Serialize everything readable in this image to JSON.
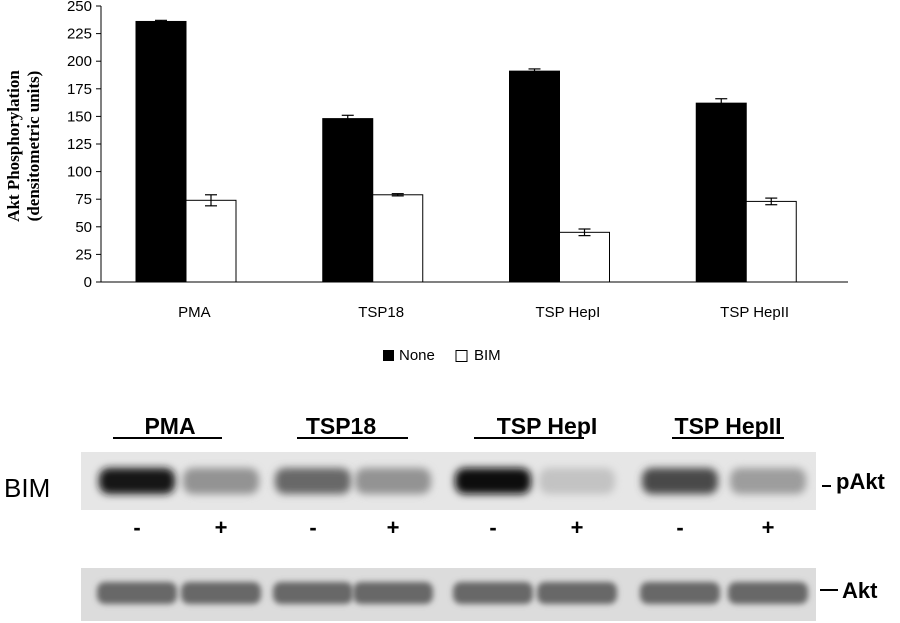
{
  "chart_data": {
    "type": "bar",
    "ylabel_line1": "Akt Phosphorylation",
    "ylabel_line2": "(densitometric units)",
    "ylim": [
      0,
      250
    ],
    "yticks": [
      0,
      25,
      50,
      75,
      100,
      125,
      150,
      175,
      200,
      225,
      250
    ],
    "categories": [
      "PMA",
      "TSP18",
      "TSP HepI",
      "TSP HepII"
    ],
    "series": [
      {
        "name": "None",
        "values": [
          236,
          148,
          191,
          162
        ],
        "errors": [
          1,
          3,
          2,
          4
        ],
        "color": "#000000"
      },
      {
        "name": "BIM",
        "values": [
          74,
          79,
          45,
          73
        ],
        "errors": [
          5,
          1,
          3,
          3
        ],
        "color": "#ffffff"
      }
    ],
    "legend_placement": "bottom-center",
    "grid": false
  },
  "blot": {
    "row_label": "BIM",
    "groups": [
      "PMA",
      "TSP18",
      "TSP HepI",
      "TSP HepII"
    ],
    "treatment_signs": [
      "-",
      "+",
      "-",
      "+",
      "-",
      "+",
      "-",
      "+"
    ],
    "band_labels": [
      "pAkt",
      "Akt"
    ],
    "pakt_relative_intensity": [
      0.95,
      0.35,
      0.55,
      0.35,
      1.0,
      0.12,
      0.7,
      0.3
    ],
    "akt_relative_intensity": [
      0.55,
      0.55,
      0.55,
      0.55,
      0.55,
      0.55,
      0.55,
      0.55
    ]
  }
}
